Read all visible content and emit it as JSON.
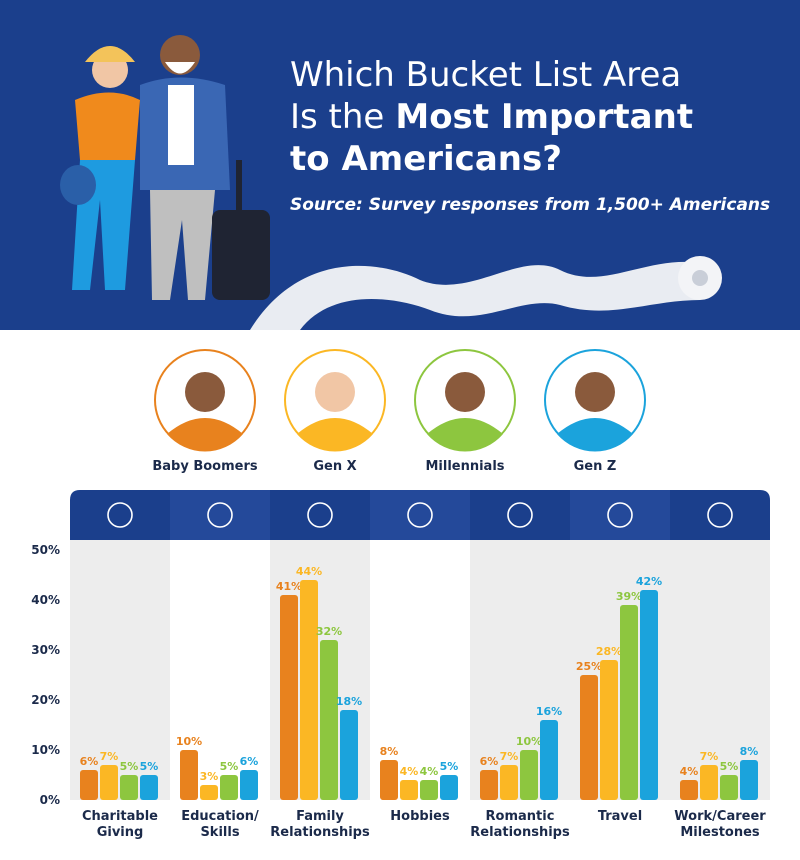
{
  "chart_data": {
    "type": "bar",
    "title": [
      "Which Bucket List Area",
      "Is the",
      "Most Important",
      "to Americans?"
    ],
    "subtitle": "Source: Survey responses from 1,500+ Americans",
    "categories": [
      [
        "Charitable",
        "Giving"
      ],
      [
        "Education/",
        "Skills"
      ],
      [
        "Family",
        "Relationships"
      ],
      [
        "Hobbies"
      ],
      [
        "Romantic",
        "Relationships"
      ],
      [
        "Travel"
      ],
      [
        "Work/Career",
        "Milestones"
      ]
    ],
    "series": [
      {
        "name": "Baby Boomers",
        "color": "#e8821e",
        "values": [
          6,
          10,
          41,
          8,
          6,
          25,
          4
        ],
        "value_labels": [
          "6%",
          "10%",
          "41%",
          "8%",
          "6%",
          "25%",
          "4%"
        ]
      },
      {
        "name": "Gen X",
        "color": "#fbb724",
        "values": [
          7,
          3,
          44,
          4,
          7,
          28,
          7
        ],
        "value_labels": [
          "7%",
          "3%",
          "44%",
          "4%",
          "7%",
          "28%",
          "7%"
        ]
      },
      {
        "name": "Millennials",
        "color": "#8dc63f",
        "values": [
          5,
          5,
          32,
          4,
          10,
          39,
          5
        ],
        "value_labels": [
          "5%",
          "5%",
          "32%",
          "4%",
          "10%",
          "39%",
          "5%"
        ]
      },
      {
        "name": "Gen Z",
        "color": "#1ba3dc",
        "values": [
          5,
          6,
          18,
          5,
          16,
          42,
          8
        ],
        "value_labels": [
          "5%",
          "6%",
          "18%",
          "5%",
          "16%",
          "42%",
          "8%"
        ]
      }
    ],
    "ylim": [
      0,
      50
    ],
    "yticks": [
      {
        "value": 0,
        "label": "0%"
      },
      {
        "value": 10,
        "label": "10%"
      },
      {
        "value": 20,
        "label": "20%"
      },
      {
        "value": 30,
        "label": "30%"
      },
      {
        "value": 40,
        "label": "40%"
      },
      {
        "value": 50,
        "label": "50%"
      }
    ]
  }
}
